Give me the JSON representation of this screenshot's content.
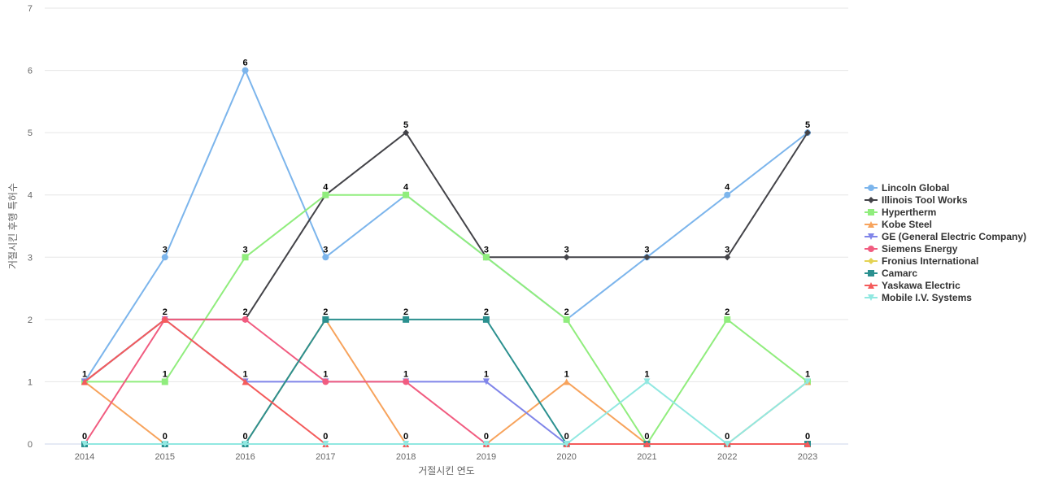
{
  "chart_data": {
    "type": "line",
    "xlabel": "거절시킨 연도",
    "ylabel": "거절시킨 후행 특허수",
    "x": [
      "2014",
      "2015",
      "2016",
      "2017",
      "2018",
      "2019",
      "2020",
      "2021",
      "2022",
      "2023"
    ],
    "ylim": [
      0,
      7
    ],
    "yticks": [
      "0",
      "1",
      "2",
      "3",
      "4",
      "5",
      "6",
      "7"
    ],
    "grid": true,
    "legend_position": "right",
    "series": [
      {
        "name": "Lincoln Global",
        "color": "#7cb5ec",
        "marker": "circle",
        "values": [
          1,
          3,
          6,
          3,
          4,
          3,
          2,
          3,
          4,
          5
        ]
      },
      {
        "name": "Illinois Tool Works",
        "color": "#434348",
        "marker": "diamond",
        "values": [
          1,
          2,
          2,
          4,
          5,
          3,
          3,
          3,
          3,
          5
        ]
      },
      {
        "name": "Hypertherm",
        "color": "#90ed7d",
        "marker": "square",
        "values": [
          1,
          1,
          3,
          4,
          4,
          3,
          2,
          0,
          2,
          1
        ]
      },
      {
        "name": "Kobe Steel",
        "color": "#f7a35c",
        "marker": "triangle",
        "values": [
          1,
          0,
          0,
          2,
          0,
          0,
          1,
          0,
          0,
          1
        ]
      },
      {
        "name": "GE (General Electric Company)",
        "color": "#8085e9",
        "marker": "triangle-down",
        "values": [
          1,
          2,
          1,
          1,
          1,
          1,
          0,
          0,
          0,
          0
        ]
      },
      {
        "name": "Siemens Energy",
        "color": "#f15c80",
        "marker": "circle",
        "values": [
          0,
          2,
          2,
          1,
          1,
          0,
          0,
          0,
          0,
          0
        ]
      },
      {
        "name": "Fronius International",
        "color": "#e4d354",
        "marker": "diamond",
        "values": [
          0,
          0,
          0,
          0,
          0,
          0,
          0,
          0,
          0,
          0
        ]
      },
      {
        "name": "Camarc",
        "color": "#2b908f",
        "marker": "square",
        "values": [
          0,
          0,
          0,
          2,
          2,
          2,
          0,
          0,
          0,
          0
        ]
      },
      {
        "name": "Yaskawa Electric",
        "color": "#f45b5b",
        "marker": "triangle",
        "values": [
          1,
          2,
          1,
          0,
          0,
          0,
          0,
          0,
          0,
          0
        ]
      },
      {
        "name": "Mobile I.V. Systems",
        "color": "#91e8e1",
        "marker": "triangle-down",
        "values": [
          0,
          0,
          0,
          0,
          0,
          0,
          0,
          1,
          0,
          1
        ]
      }
    ]
  }
}
